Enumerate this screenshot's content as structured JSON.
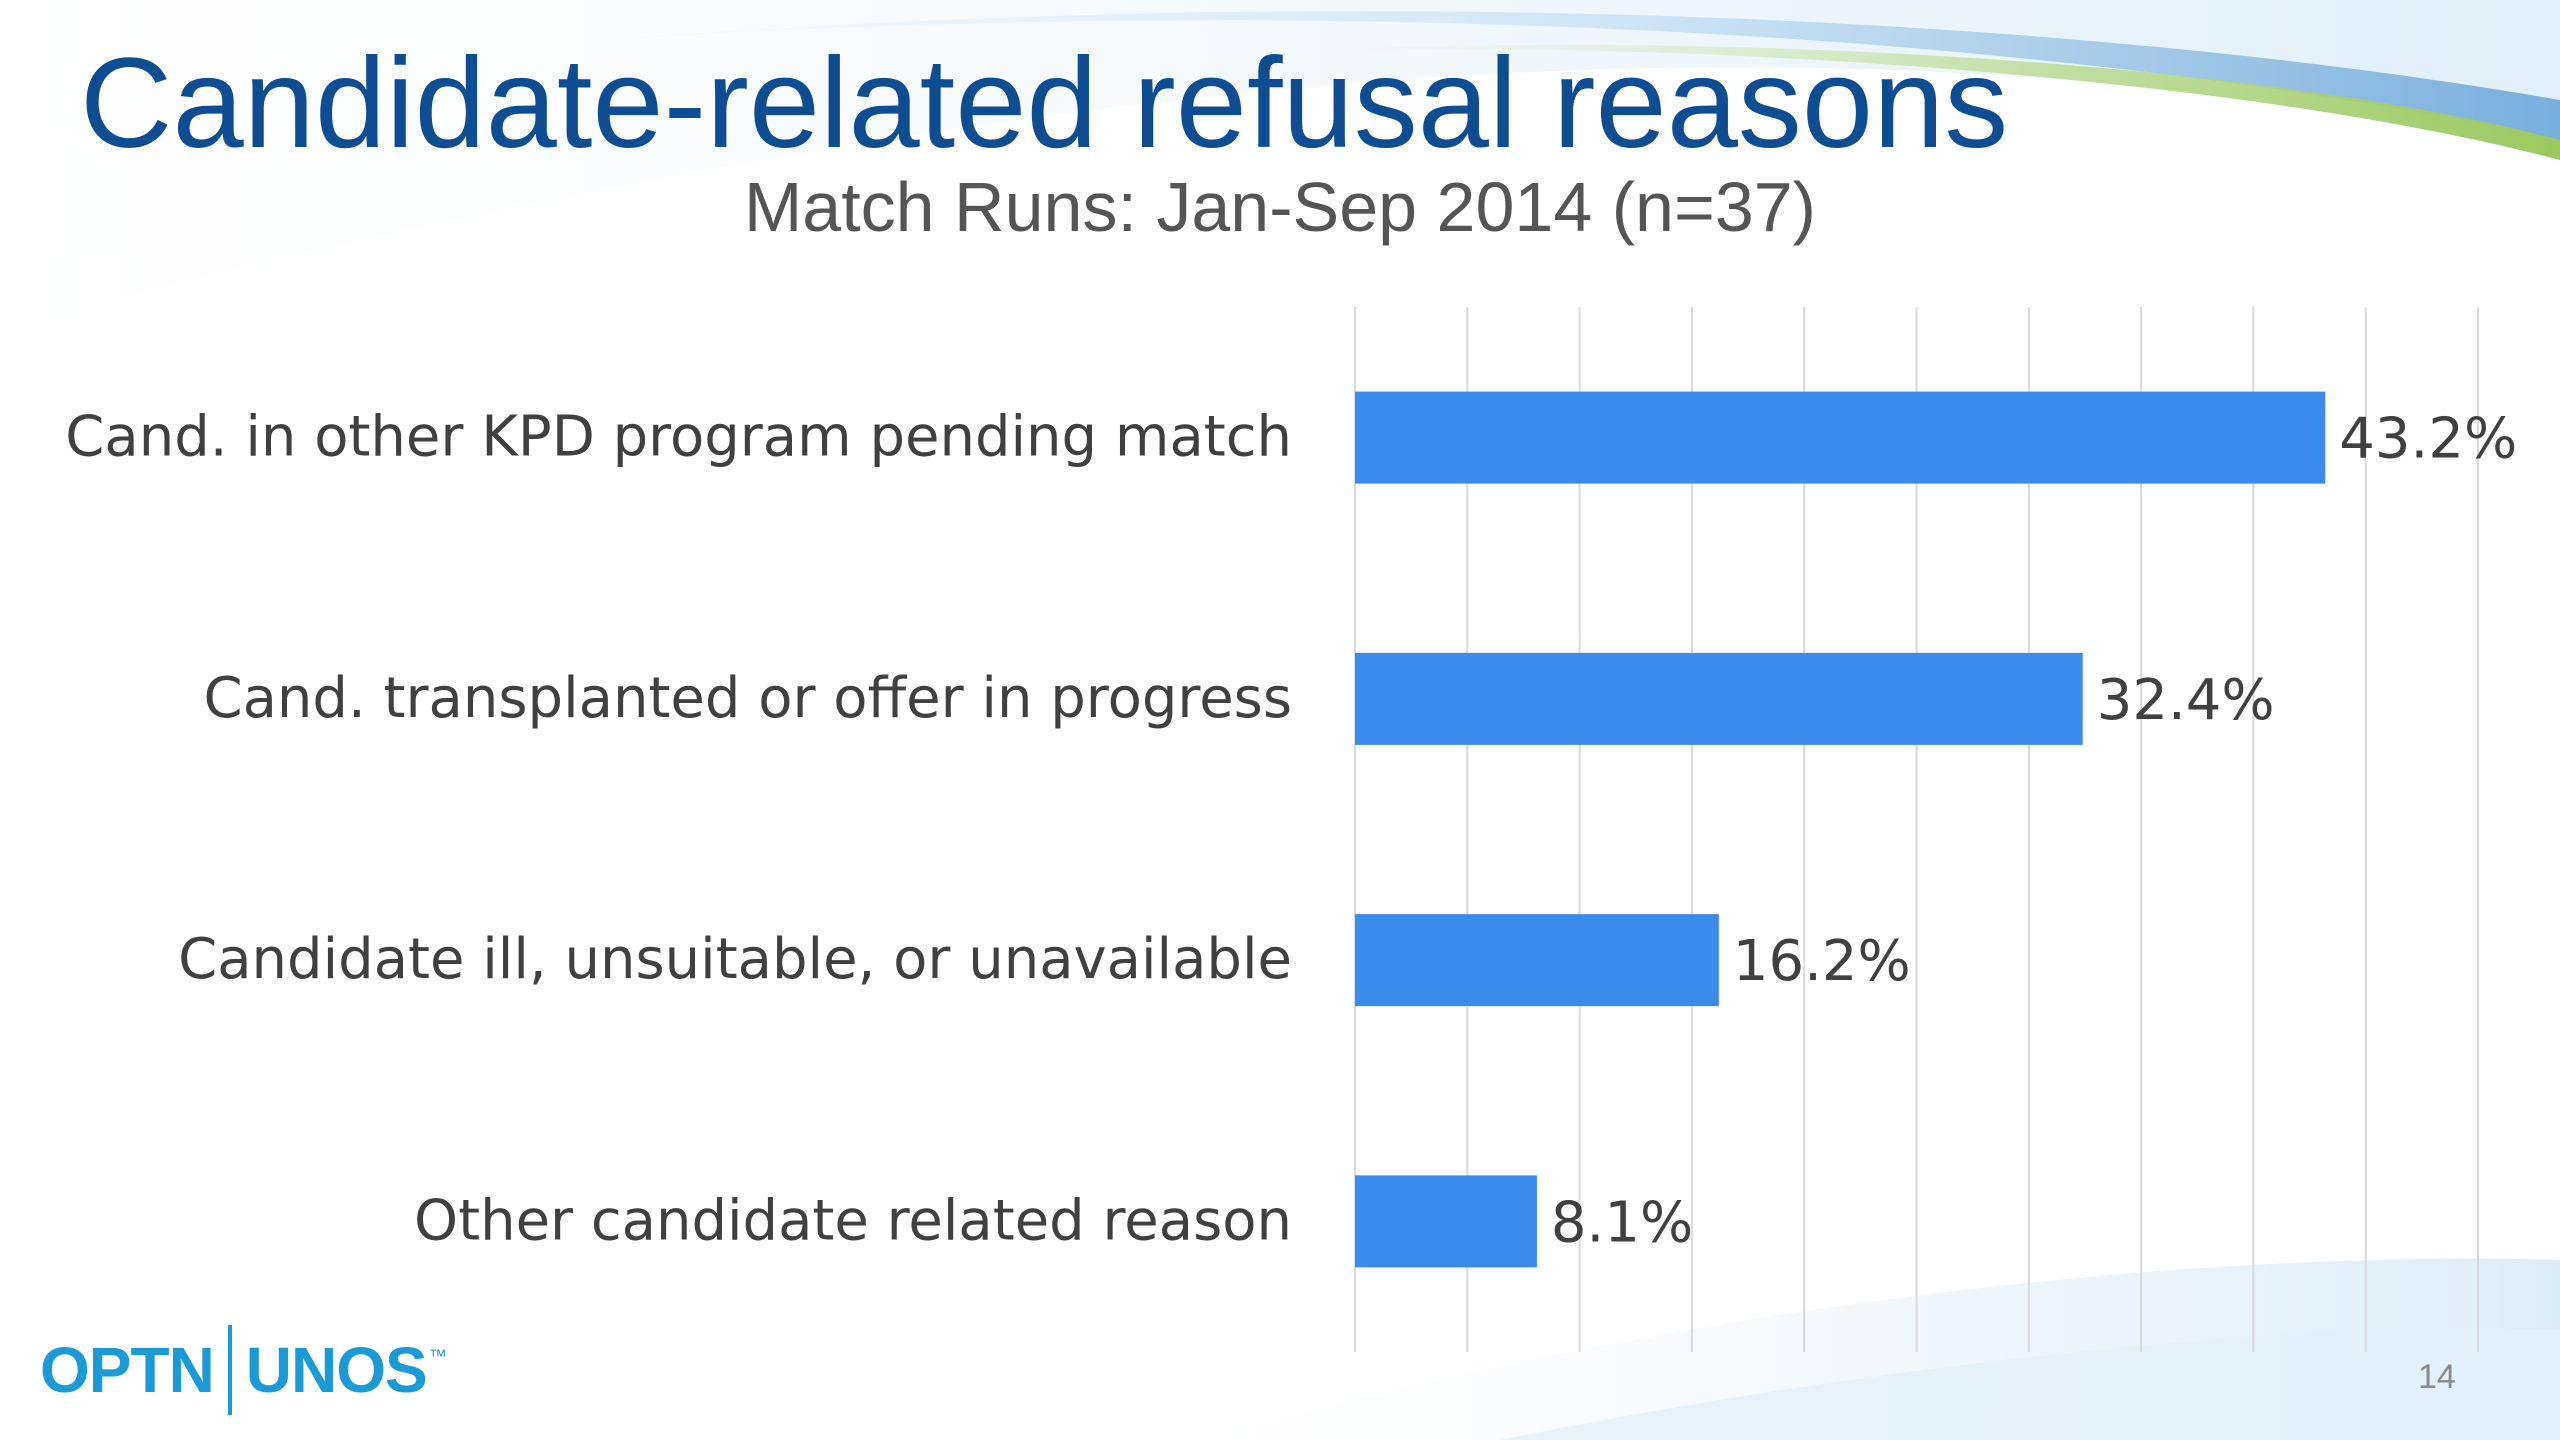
{
  "slide": {
    "title": "Candidate-related refusal reasons",
    "subtitle": "Match Runs: Jan-Sep 2014 (n=37)",
    "page_number": "14"
  },
  "logo": {
    "left_text": "OPTN",
    "right_text": "UNOS",
    "trademark": "™"
  },
  "colors": {
    "bar": "#3b8bed",
    "title": "#0f4d92",
    "subtitle": "#555555",
    "gridline": "#d9d9d9",
    "label": "#404040"
  },
  "chart_data": {
    "type": "bar",
    "orientation": "horizontal",
    "categories": [
      "Cand. in other KPD program pending match",
      "Cand. transplanted or offer in progress",
      "Candidate ill, unsuitable, or unavailable",
      "Other candidate related reason"
    ],
    "values": [
      43.2,
      32.4,
      16.2,
      8.1
    ],
    "value_labels": [
      "43.2%",
      "32.4%",
      "16.2%",
      "8.1%"
    ],
    "xlim": [
      0,
      50
    ],
    "grid": true,
    "xlabel": "",
    "ylabel": ""
  }
}
